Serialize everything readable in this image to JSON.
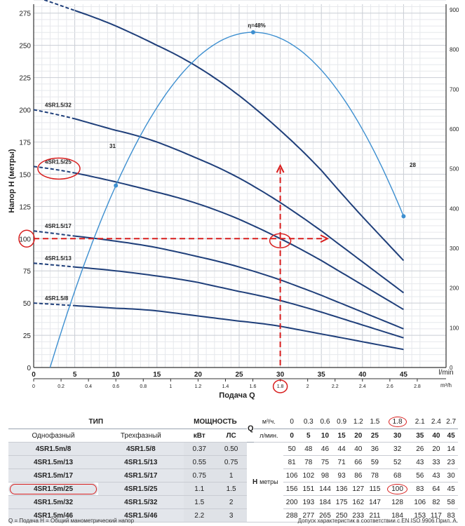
{
  "chart_data": {
    "type": "line",
    "title": "",
    "xlabel": "Подача Q",
    "ylabel": "Напор H (метры)",
    "x_unit_primary": "l/min",
    "x_unit_secondary": "m³/h",
    "xlim": [
      0,
      47
    ],
    "ylim": [
      0,
      285
    ],
    "xticks": [
      0,
      5,
      10,
      15,
      20,
      25,
      30,
      35,
      40,
      45
    ],
    "xticks_m3h": [
      "0",
      "0.2",
      "0.4",
      "0.6",
      "0.8",
      "1",
      "1.2",
      "1.4",
      "1.6",
      "1.8",
      "2",
      "2.2",
      "2.4",
      "2.6",
      "2.8"
    ],
    "yticks": [
      0,
      25,
      50,
      75,
      100,
      125,
      150,
      175,
      200,
      225,
      250,
      275
    ],
    "right_ticks": [
      0,
      100,
      200,
      300,
      400,
      500,
      600,
      700,
      800,
      900
    ],
    "series": [
      {
        "name": "4SR1.5/8",
        "x": [
          0,
          5,
          10,
          15,
          20,
          25,
          30,
          35,
          40,
          45
        ],
        "values": [
          50,
          48,
          46,
          44,
          40,
          36,
          32,
          26,
          20,
          14
        ]
      },
      {
        "name": "4SR1.5/13",
        "x": [
          0,
          5,
          10,
          15,
          20,
          25,
          30,
          35,
          40,
          45
        ],
        "values": [
          81,
          78,
          75,
          71,
          66,
          59,
          52,
          43,
          33,
          23
        ]
      },
      {
        "name": "4SR1.5/17",
        "x": [
          0,
          5,
          10,
          15,
          20,
          25,
          30,
          35,
          40,
          45
        ],
        "values": [
          106,
          102,
          98,
          93,
          86,
          78,
          68,
          56,
          43,
          30
        ]
      },
      {
        "name": "4SR1.5/25",
        "x": [
          0,
          5,
          10,
          15,
          20,
          25,
          30,
          35,
          40,
          45
        ],
        "values": [
          156,
          151,
          144,
          136,
          127,
          115,
          100,
          83,
          64,
          45
        ]
      },
      {
        "name": "4SR1.5/32",
        "x": [
          0,
          5,
          10,
          15,
          20,
          25,
          30,
          35,
          40,
          45
        ],
        "values": [
          200,
          193,
          184,
          175,
          162,
          147,
          128,
          106,
          82,
          58
        ]
      },
      {
        "name": "4SR1.5/46",
        "x": [
          0,
          5,
          10,
          15,
          20,
          25,
          30,
          35,
          40,
          45
        ],
        "values": [
          288,
          277,
          265,
          250,
          233,
          211,
          184,
          153,
          117,
          83
        ]
      }
    ],
    "efficiency": {
      "x": [
        2,
        10,
        15,
        20,
        26.7,
        33,
        40,
        45
      ],
      "values": [
        0,
        31,
        40,
        46,
        48,
        46,
        38,
        28
      ]
    },
    "annotations": {
      "eff_max": "η=48%",
      "eff_left": "31",
      "eff_right": "28"
    },
    "operating_point": {
      "q": 30,
      "h": 100,
      "q_m3h": "1.8",
      "model": "4SR1.5/25"
    }
  },
  "table": {
    "header": {
      "typ": "ТИП",
      "power": "МОЩНОСТЬ",
      "q": "Q",
      "single_phase": "Однофазный",
      "three_phase": "Трехфазный",
      "kw": "кВт",
      "hp": "ЛС",
      "unit_m3h": "м³/ч.",
      "unit_lmin": "л/мин.",
      "h_label": "Н",
      "h_unit": "метры",
      "q_m3h": [
        "0",
        "0.3",
        "0.6",
        "0.9",
        "1.2",
        "1.5",
        "1.8",
        "2.1",
        "2.4",
        "2.7"
      ],
      "q_lmin": [
        "0",
        "5",
        "10",
        "15",
        "20",
        "25",
        "30",
        "35",
        "40",
        "45"
      ]
    },
    "rows": [
      {
        "single": "4SR1.5m/8",
        "three": "4SR1.5/8",
        "kw": "0.37",
        "hp": "0.50",
        "h": [
          "50",
          "48",
          "46",
          "44",
          "40",
          "36",
          "32",
          "26",
          "20",
          "14"
        ]
      },
      {
        "single": "4SR1.5m/13",
        "three": "4SR1.5/13",
        "kw": "0.55",
        "hp": "0.75",
        "h": [
          "81",
          "78",
          "75",
          "71",
          "66",
          "59",
          "52",
          "43",
          "33",
          "23"
        ]
      },
      {
        "single": "4SR1.5m/17",
        "three": "4SR1.5/17",
        "kw": "0.75",
        "hp": "1",
        "h": [
          "106",
          "102",
          "98",
          "93",
          "86",
          "78",
          "68",
          "56",
          "43",
          "30"
        ]
      },
      {
        "single": "4SR1.5m/25",
        "three": "4SR1.5/25",
        "kw": "1.1",
        "hp": "1.5",
        "h": [
          "156",
          "151",
          "144",
          "136",
          "127",
          "115",
          "100",
          "83",
          "64",
          "45"
        ]
      },
      {
        "single": "4SR1.5m/32",
        "three": "4SR1.5/32",
        "kw": "1.5",
        "hp": "2",
        "h": [
          "200",
          "193",
          "184",
          "175",
          "162",
          "147",
          "128",
          "106",
          "82",
          "58"
        ]
      },
      {
        "single": "4SR1.5m/46",
        "three": "4SR1.5/46",
        "kw": "2.2",
        "hp": "3",
        "h": [
          "288",
          "277",
          "265",
          "250",
          "233",
          "211",
          "184",
          "153",
          "117",
          "83"
        ]
      }
    ]
  },
  "footer": {
    "left": "Q = Подача  H = Общий манометрический напор",
    "right": "Допуск характеристик в соответствии с EN ISO 9906 Прил. A."
  },
  "colors": {
    "curve": "#1f3f7a",
    "efficiency": "#3d8fd0",
    "grid": "#d6d9df",
    "highlight": "#d81e1e"
  }
}
